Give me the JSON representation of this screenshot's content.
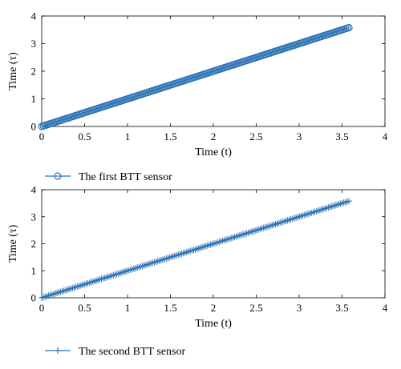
{
  "chart_data": [
    {
      "type": "line",
      "xlabel": "Time (t)",
      "ylabel": "Time (τ)",
      "xlim": [
        0,
        4
      ],
      "ylim": [
        0,
        4
      ],
      "xticks": [
        "0",
        "0.5",
        "1",
        "1.5",
        "2",
        "2.5",
        "3",
        "3.5",
        "4"
      ],
      "yticks": [
        "0",
        "1",
        "2",
        "3",
        "4"
      ],
      "grid": false,
      "legend_position": "below",
      "series": [
        {
          "name": "The first BTT sensor",
          "marker": "circle",
          "color": "#2e75b6",
          "x": [
            0,
            0.5,
            1.0,
            1.5,
            2.0,
            2.5,
            3.0,
            3.58
          ],
          "y": [
            0,
            0.5,
            1.0,
            1.5,
            2.0,
            2.5,
            3.0,
            3.58
          ]
        }
      ]
    },
    {
      "type": "line",
      "xlabel": "Time (t)",
      "ylabel": "Time (τ)",
      "xlim": [
        0,
        4
      ],
      "ylim": [
        0,
        4
      ],
      "xticks": [
        "0",
        "0.5",
        "1",
        "1.5",
        "2",
        "2.5",
        "3",
        "3.5",
        "4"
      ],
      "yticks": [
        "0",
        "1",
        "2",
        "3",
        "4"
      ],
      "grid": false,
      "legend_position": "below",
      "series": [
        {
          "name": "The second BTT sensor",
          "marker": "plus",
          "color": "#2e75b6",
          "x": [
            0,
            0.5,
            1.0,
            1.5,
            2.0,
            2.5,
            3.0,
            3.58
          ],
          "y": [
            0,
            0.5,
            1.0,
            1.5,
            2.0,
            2.5,
            3.0,
            3.58
          ]
        }
      ]
    }
  ]
}
